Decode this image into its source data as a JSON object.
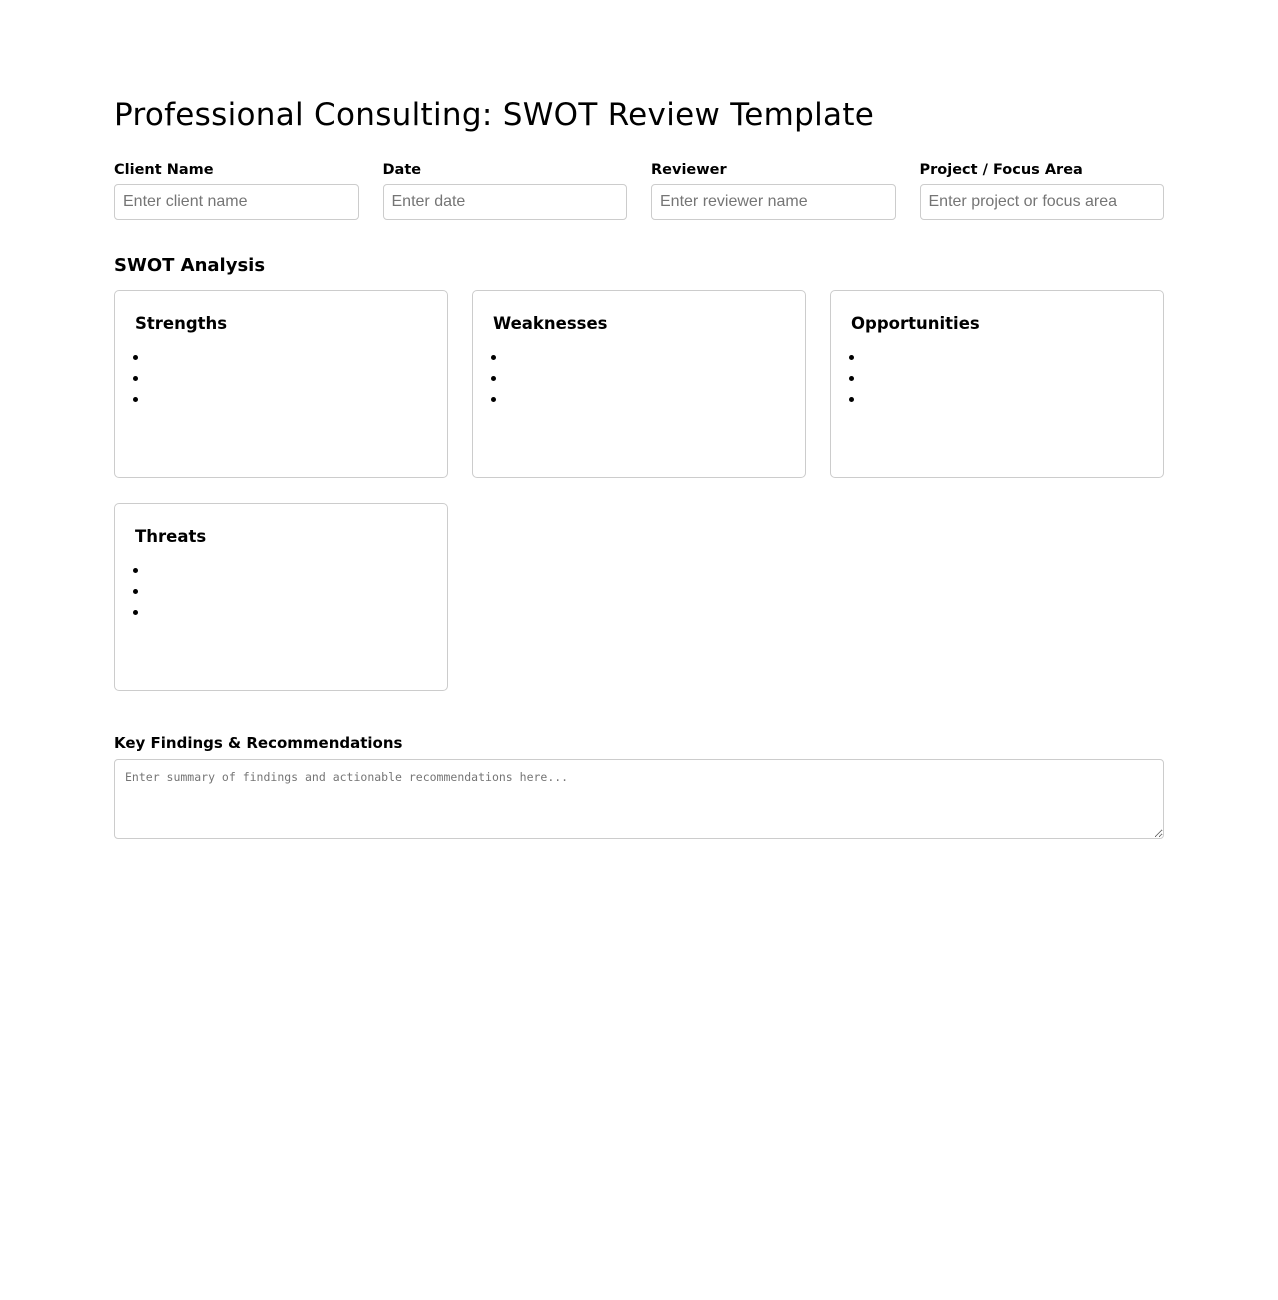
{
  "title": "Professional Consulting: SWOT Review Template",
  "fields": [
    {
      "label": "Client Name",
      "placeholder": "Enter client name"
    },
    {
      "label": "Date",
      "placeholder": "Enter date"
    },
    {
      "label": "Reviewer",
      "placeholder": "Enter reviewer name"
    },
    {
      "label": "Project / Focus Area",
      "placeholder": "Enter project or focus area"
    }
  ],
  "swot": {
    "heading": "SWOT Analysis",
    "cards": [
      {
        "title": "Strengths"
      },
      {
        "title": "Weaknesses"
      },
      {
        "title": "Opportunities"
      },
      {
        "title": "Threats"
      }
    ]
  },
  "findings": {
    "label": "Key Findings & Recommendations",
    "placeholder": "Enter summary of findings and actionable recommendations here..."
  }
}
